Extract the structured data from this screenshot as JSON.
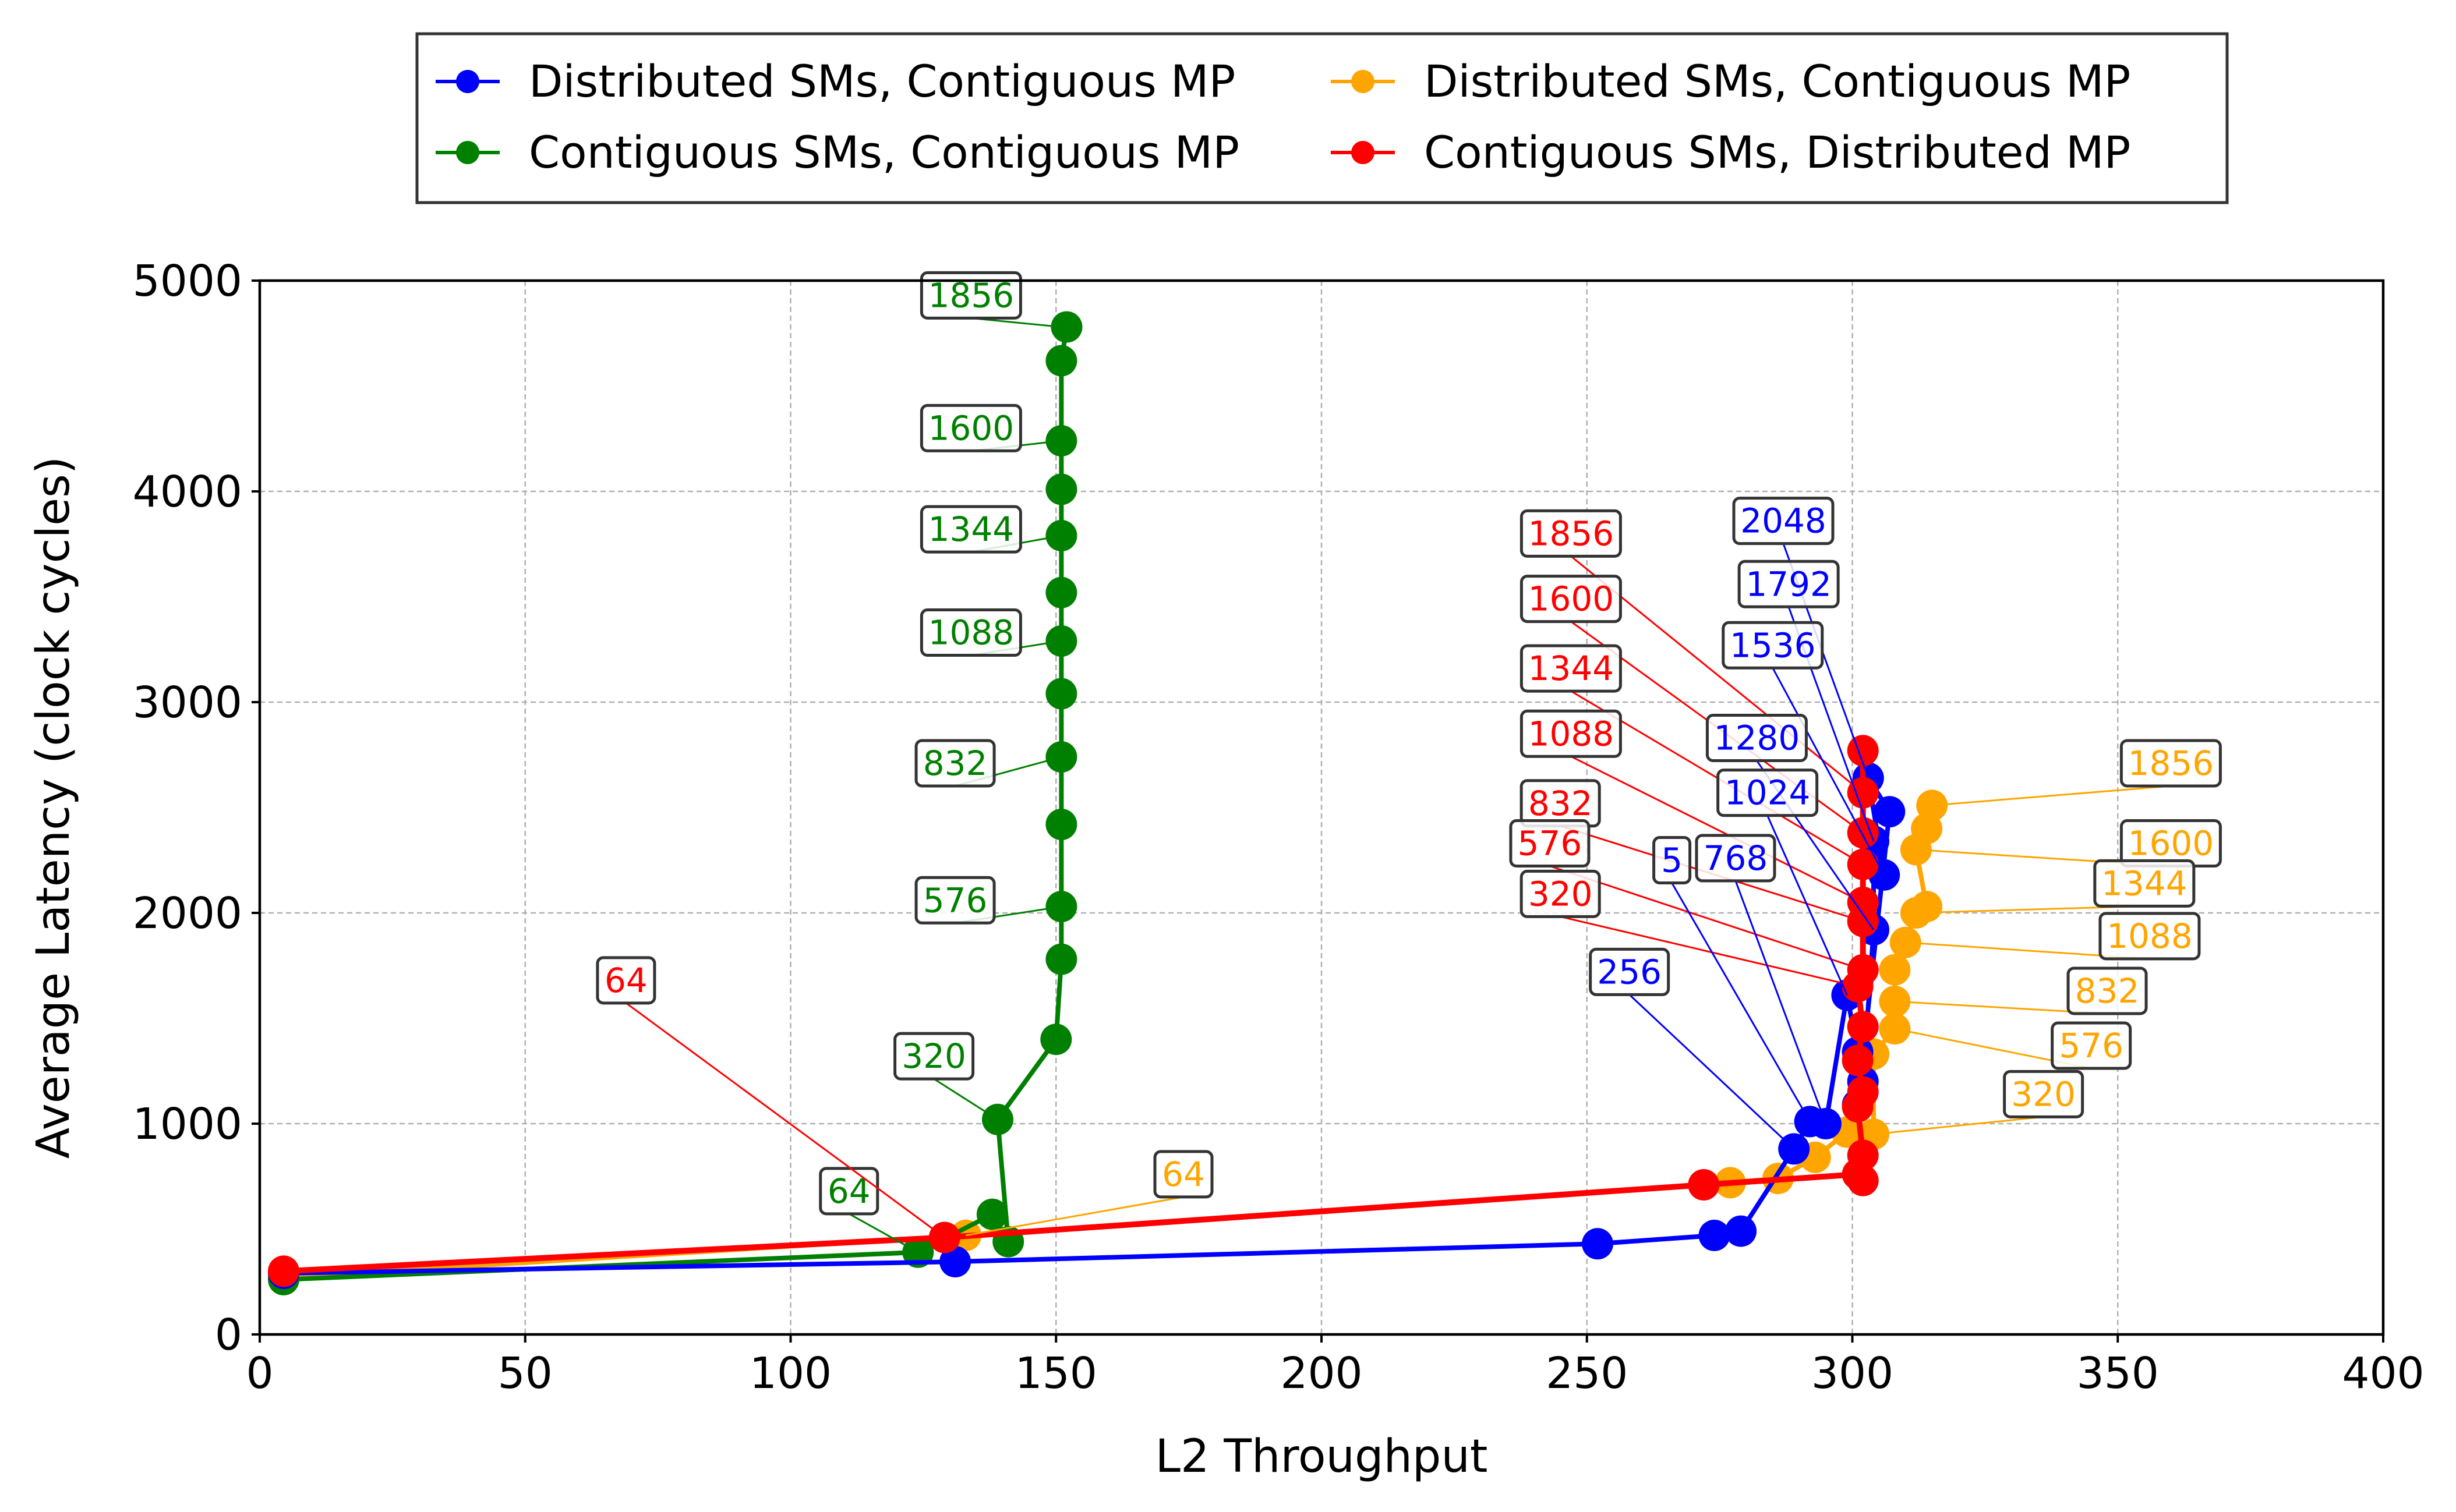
{
  "chart_data": {
    "type": "line",
    "title": "",
    "xlabel": "L2 Throughput",
    "ylabel": "Average Latency (clock cycles)",
    "xlim": [
      0,
      400
    ],
    "ylim": [
      0,
      5000
    ],
    "xticks": [
      0,
      50,
      100,
      150,
      200,
      250,
      300,
      350,
      400
    ],
    "yticks": [
      0,
      1000,
      2000,
      3000,
      4000,
      5000
    ],
    "grid": true,
    "legend_position": "top-center, above plot, 2 columns",
    "series": [
      {
        "name": "Distributed SMs, Contiguous MP",
        "color": "#0000ff",
        "points": [
          [
            4.5,
            290
          ],
          [
            131,
            345
          ],
          [
            252,
            430
          ],
          [
            274,
            470
          ],
          [
            279,
            490
          ],
          [
            289,
            880
          ],
          [
            292,
            1010
          ],
          [
            295,
            1000
          ],
          [
            299,
            1610
          ],
          [
            301,
            1340
          ],
          [
            302,
            1200
          ],
          [
            304,
            1920
          ],
          [
            304,
            2340
          ],
          [
            306,
            2180
          ],
          [
            303,
            2640
          ],
          [
            307,
            2480
          ],
          [
            301,
            1090
          ]
        ]
      },
      {
        "name": "Distributed SMs, Contiguous MP",
        "color": "#ffa500",
        "points": [
          [
            4.5,
            270
          ],
          [
            133,
            470
          ],
          [
            277,
            720
          ],
          [
            286,
            740
          ],
          [
            293,
            840
          ],
          [
            299,
            960
          ],
          [
            304,
            950
          ],
          [
            304,
            1330
          ],
          [
            308,
            1450
          ],
          [
            308,
            1580
          ],
          [
            308,
            1730
          ],
          [
            310,
            1860
          ],
          [
            312,
            2000
          ],
          [
            314,
            2030
          ],
          [
            312,
            2300
          ],
          [
            314,
            2400
          ],
          [
            315,
            2510
          ]
        ]
      },
      {
        "name": "Contiguous SMs, Contiguous MP",
        "color": "#008000",
        "points": [
          [
            4.5,
            260
          ],
          [
            124,
            390
          ],
          [
            138,
            570
          ],
          [
            141,
            440
          ],
          [
            139,
            1020
          ],
          [
            150,
            1400
          ],
          [
            151,
            1780
          ],
          [
            151,
            2030
          ],
          [
            151,
            2420
          ],
          [
            151,
            2740
          ],
          [
            151,
            3040
          ],
          [
            151,
            3290
          ],
          [
            151,
            3520
          ],
          [
            151,
            3790
          ],
          [
            151,
            4010
          ],
          [
            151,
            4240
          ],
          [
            151,
            4620
          ],
          [
            152,
            4780
          ]
        ]
      },
      {
        "name": "Contiguous SMs, Distributed MP",
        "color": "#ff0000",
        "points": [
          [
            4.5,
            300
          ],
          [
            129,
            460
          ],
          [
            272,
            710
          ],
          [
            301,
            760
          ],
          [
            302,
            730
          ],
          [
            302,
            850
          ],
          [
            301,
            1080
          ],
          [
            302,
            1150
          ],
          [
            301,
            1300
          ],
          [
            302,
            1460
          ],
          [
            301,
            1650
          ],
          [
            302,
            1730
          ],
          [
            302,
            1960
          ],
          [
            302,
            2050
          ],
          [
            302,
            2230
          ],
          [
            302,
            2380
          ],
          [
            302,
            2570
          ],
          [
            302,
            2770
          ]
        ]
      }
    ],
    "annotations": [
      {
        "text": "1856",
        "color": "#008000",
        "box": [
          134,
          4930
        ],
        "point": [
          151,
          4780
        ]
      },
      {
        "text": "1600",
        "color": "#008000",
        "box": [
          134,
          4300
        ],
        "point": [
          151,
          4240
        ]
      },
      {
        "text": "1344",
        "color": "#008000",
        "box": [
          134,
          3820
        ],
        "point": [
          151,
          3790
        ]
      },
      {
        "text": "1088",
        "color": "#008000",
        "box": [
          134,
          3330
        ],
        "point": [
          151,
          3290
        ]
      },
      {
        "text": "832",
        "color": "#008000",
        "box": [
          131,
          2710
        ],
        "point": [
          151,
          2740
        ]
      },
      {
        "text": "576",
        "color": "#008000",
        "box": [
          131,
          2060
        ],
        "point": [
          151,
          2030
        ]
      },
      {
        "text": "320",
        "color": "#008000",
        "box": [
          127,
          1320
        ],
        "point": [
          139,
          1020
        ]
      },
      {
        "text": "64",
        "color": "#008000",
        "box": [
          111,
          680
        ],
        "point": [
          124,
          390
        ]
      },
      {
        "text": "64",
        "color": "#ff0000",
        "box": [
          69,
          1680
        ],
        "point": [
          129,
          460
        ]
      },
      {
        "text": "64",
        "color": "#ffa500",
        "box": [
          174,
          760
        ],
        "point": [
          133,
          470
        ]
      },
      {
        "text": "1856",
        "color": "#ff0000",
        "box": [
          247,
          3800
        ],
        "point": [
          302,
          2570
        ]
      },
      {
        "text": "1600",
        "color": "#ff0000",
        "box": [
          247,
          3490
        ],
        "point": [
          302,
          2380
        ]
      },
      {
        "text": "1344",
        "color": "#ff0000",
        "box": [
          247,
          3160
        ],
        "point": [
          302,
          2230
        ]
      },
      {
        "text": "1088",
        "color": "#ff0000",
        "box": [
          247,
          2850
        ],
        "point": [
          302,
          2050
        ]
      },
      {
        "text": "832",
        "color": "#ff0000",
        "box": [
          245,
          2520
        ],
        "point": [
          302,
          1960
        ]
      },
      {
        "text": "576",
        "color": "#ff0000",
        "box": [
          243,
          2330
        ],
        "point": [
          302,
          1730
        ]
      },
      {
        "text": "320",
        "color": "#ff0000",
        "box": [
          245,
          2090
        ],
        "point": [
          301,
          1650
        ]
      },
      {
        "text": "2048",
        "color": "#0000ff",
        "box": [
          287,
          3860
        ],
        "point": [
          303,
          2640
        ]
      },
      {
        "text": "1792",
        "color": "#0000ff",
        "box": [
          288,
          3560
        ],
        "point": [
          304,
          2340
        ]
      },
      {
        "text": "1536",
        "color": "#0000ff",
        "box": [
          285,
          3270
        ],
        "point": [
          306,
          2180
        ]
      },
      {
        "text": "1280",
        "color": "#0000ff",
        "box": [
          282,
          2830
        ],
        "point": [
          304,
          1920
        ]
      },
      {
        "text": "1024",
        "color": "#0000ff",
        "box": [
          284,
          2570
        ],
        "point": [
          299,
          1610
        ]
      },
      {
        "text": "768",
        "color": "#0000ff",
        "box": [
          278,
          2260
        ],
        "point": [
          295,
          1000
        ]
      },
      {
        "text": "5",
        "color": "#0000ff",
        "box": [
          266,
          2250
        ],
        "point": [
          292,
          1010
        ]
      },
      {
        "text": "256",
        "color": "#0000ff",
        "box": [
          258,
          1720
        ],
        "point": [
          289,
          880
        ]
      },
      {
        "text": "1856",
        "color": "#ffa500",
        "box": [
          360,
          2710
        ],
        "point": [
          315,
          2510
        ]
      },
      {
        "text": "1600",
        "color": "#ffa500",
        "box": [
          360,
          2330
        ],
        "point": [
          312,
          2300
        ]
      },
      {
        "text": "1344",
        "color": "#ffa500",
        "box": [
          355,
          2140
        ],
        "point": [
          312,
          2000
        ]
      },
      {
        "text": "1088",
        "color": "#ffa500",
        "box": [
          356,
          1890
        ],
        "point": [
          310,
          1860
        ]
      },
      {
        "text": "832",
        "color": "#ffa500",
        "box": [
          348,
          1630
        ],
        "point": [
          308,
          1580
        ]
      },
      {
        "text": "576",
        "color": "#ffa500",
        "box": [
          345,
          1370
        ],
        "point": [
          308,
          1450
        ]
      },
      {
        "text": "320",
        "color": "#ffa500",
        "box": [
          336,
          1140
        ],
        "point": [
          304,
          950
        ]
      }
    ]
  }
}
